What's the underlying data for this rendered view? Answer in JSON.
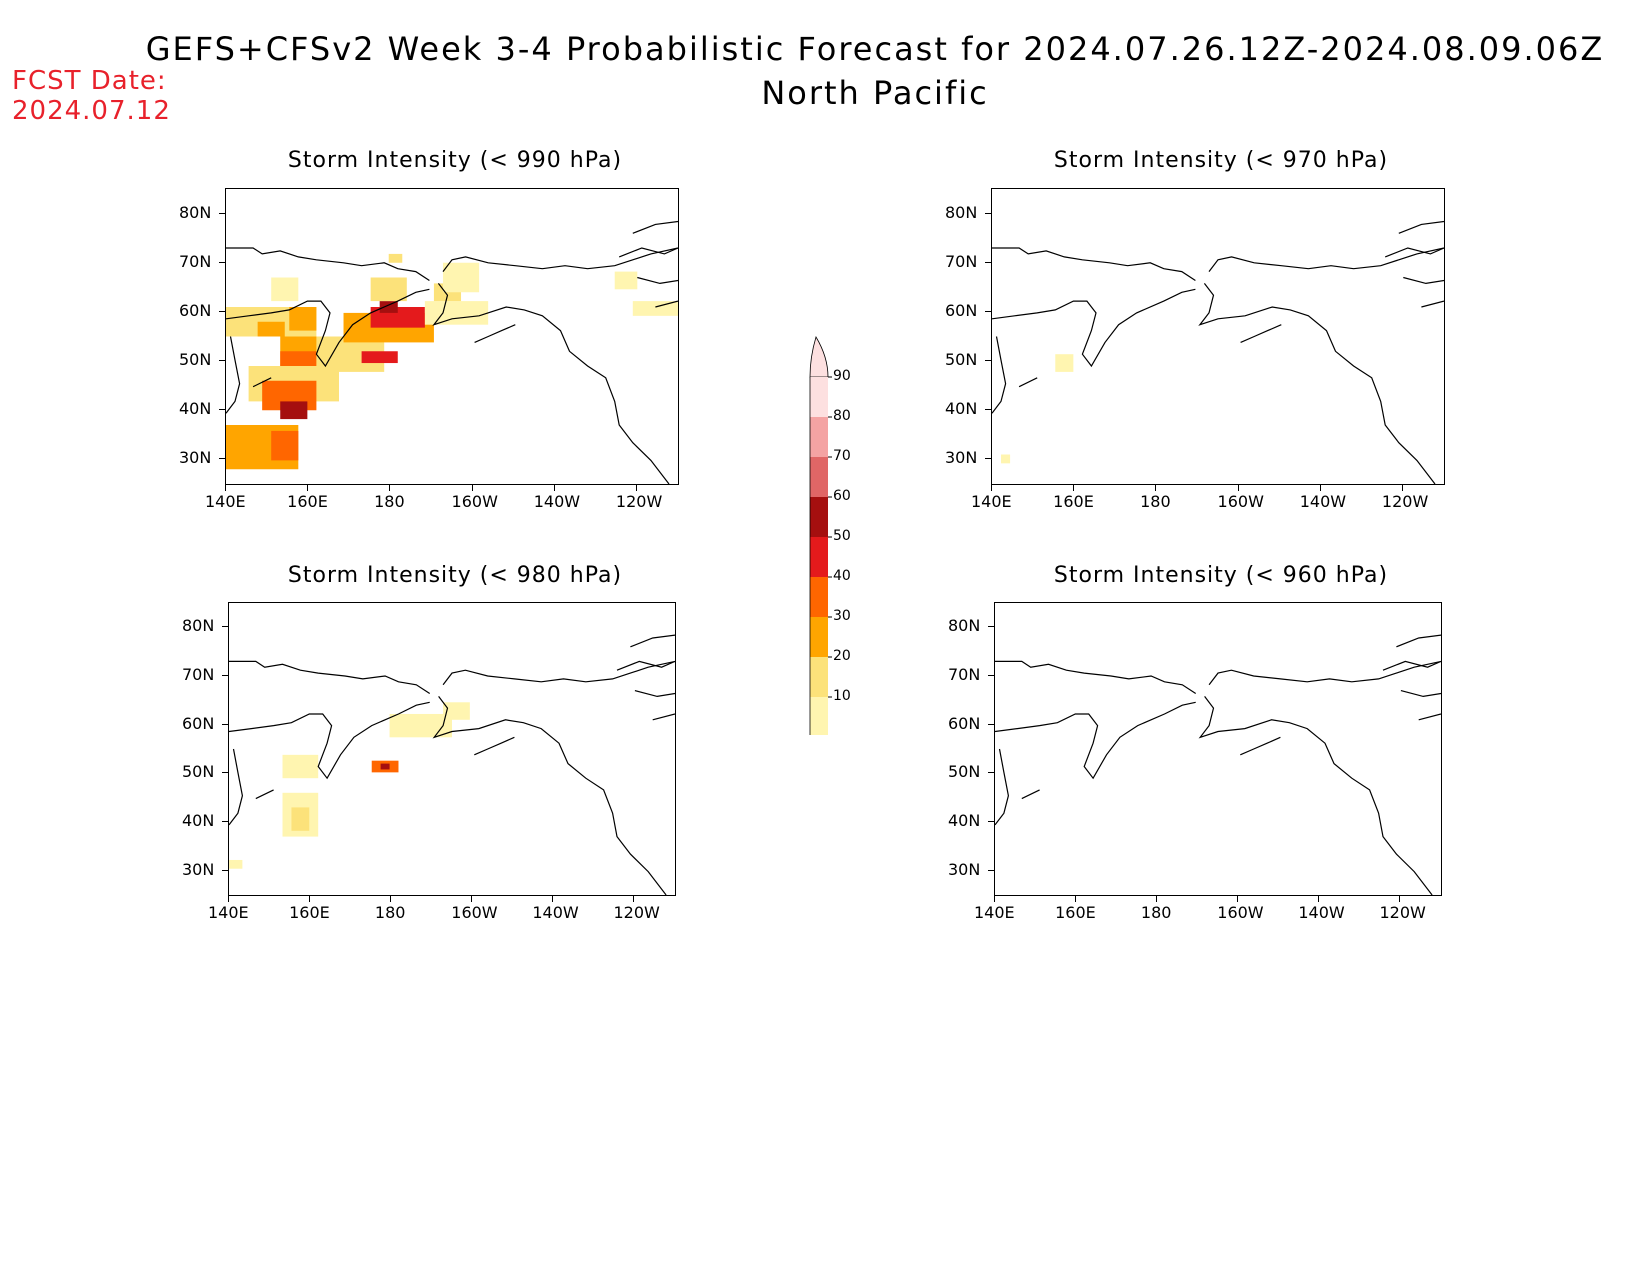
{
  "title": {
    "line1": "GEFS+CFSv2 Week 3-4 Probabilistic Forecast for 2024.07.26.12Z-2024.08.09.06Z",
    "line2": "North Pacific"
  },
  "fcst": {
    "label": "FCST Date:",
    "date": "2024.07.12",
    "color": "#e8212b"
  },
  "panels": [
    {
      "title": "Storm Intensity (< 990 hPa)"
    },
    {
      "title": "Storm Intensity (< 970 hPa)"
    },
    {
      "title": "Storm Intensity (< 980 hPa)"
    },
    {
      "title": "Storm Intensity (< 960 hPa)"
    }
  ],
  "axes": {
    "y_ticks": [
      "80N",
      "70N",
      "60N",
      "50N",
      "40N",
      "30N"
    ],
    "x_ticks": [
      "140E",
      "160E",
      "180",
      "160W",
      "140W",
      "120W"
    ],
    "lon_range": [
      140,
      250
    ],
    "lat_range": [
      25,
      85
    ]
  },
  "colorbar": {
    "labels": [
      "90",
      "80",
      "70",
      "60",
      "50",
      "40",
      "30",
      "20",
      "10"
    ],
    "colors": [
      "#fde0e0",
      "#f4a3a3",
      "#e06666",
      "#a50f0f",
      "#e41a1c",
      "#ff6600",
      "#ffa500",
      "#fce27a",
      "#fff5b0"
    ]
  }
}
